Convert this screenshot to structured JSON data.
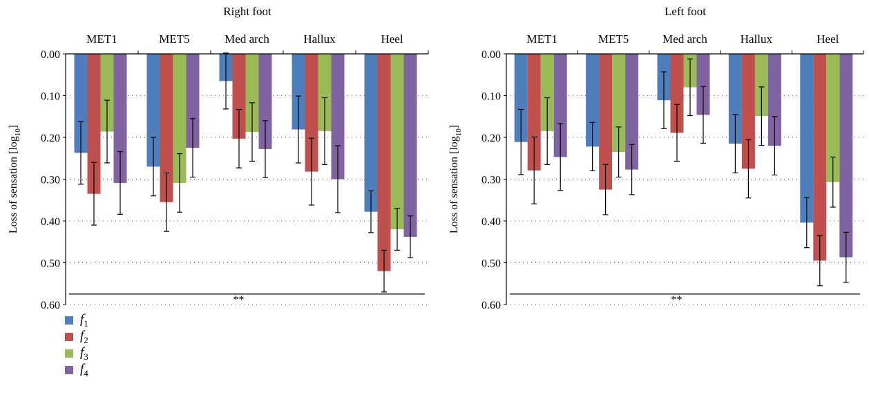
{
  "chart_data": [
    {
      "type": "bar",
      "title": "Right foot",
      "ylabel": "Loss of sensation [log10]",
      "ylabel_main": "Loss of sensation [log",
      "ylabel_sub": "10",
      "ylabel_close": "]",
      "ylim": [
        0,
        0.6
      ],
      "yaxis_inverted": true,
      "yticks": [
        "0.00",
        "0.10",
        "0.20",
        "0.30",
        "0.40",
        "0.50",
        "0.60"
      ],
      "grid": "horizontal-dotted",
      "categories": [
        "MET1",
        "MET5",
        "Med arch",
        "Hallux",
        "Heel"
      ],
      "series": [
        {
          "name": "f1",
          "values": [
            0.237,
            0.27,
            0.065,
            0.181,
            0.378
          ],
          "errors": [
            0.075,
            0.07,
            0.067,
            0.08,
            0.05
          ]
        },
        {
          "name": "f2",
          "values": [
            0.335,
            0.355,
            0.203,
            0.282,
            0.52
          ],
          "errors": [
            0.075,
            0.07,
            0.07,
            0.08,
            0.05
          ]
        },
        {
          "name": "f3",
          "values": [
            0.186,
            0.309,
            0.187,
            0.185,
            0.42
          ],
          "errors": [
            0.075,
            0.07,
            0.07,
            0.08,
            0.05
          ]
        },
        {
          "name": "f4",
          "values": [
            0.309,
            0.225,
            0.228,
            0.3,
            0.438
          ],
          "errors": [
            0.075,
            0.07,
            0.068,
            0.08,
            0.05
          ]
        }
      ],
      "significance": "**"
    },
    {
      "type": "bar",
      "title": "Left foot",
      "ylabel": "Loss of sensation [log10]",
      "ylabel_main": "Loss of sensation [log",
      "ylabel_sub": "10",
      "ylabel_close": "]",
      "ylim": [
        0,
        0.6
      ],
      "yaxis_inverted": true,
      "yticks": [
        "0.00",
        "0.10",
        "0.20",
        "0.30",
        "0.40",
        "0.50",
        "0.60"
      ],
      "grid": "horizontal-dotted",
      "categories": [
        "MET1",
        "MET5",
        "Med arch",
        "Hallux",
        "Heel"
      ],
      "series": [
        {
          "name": "f1",
          "values": [
            0.211,
            0.222,
            0.111,
            0.215,
            0.404
          ],
          "errors": [
            0.078,
            0.058,
            0.068,
            0.07,
            0.06
          ]
        },
        {
          "name": "f2",
          "values": [
            0.279,
            0.325,
            0.189,
            0.275,
            0.495
          ],
          "errors": [
            0.08,
            0.06,
            0.068,
            0.07,
            0.06
          ]
        },
        {
          "name": "f3",
          "values": [
            0.185,
            0.235,
            0.08,
            0.149,
            0.307
          ],
          "errors": [
            0.08,
            0.06,
            0.068,
            0.07,
            0.06
          ]
        },
        {
          "name": "f4",
          "values": [
            0.247,
            0.277,
            0.146,
            0.22,
            0.487
          ],
          "errors": [
            0.08,
            0.06,
            0.068,
            0.07,
            0.06
          ]
        }
      ],
      "significance": "**"
    }
  ],
  "legend": [
    {
      "base": "f",
      "sub": "1",
      "color": "#4f7ebd"
    },
    {
      "base": "f",
      "sub": "2",
      "color": "#c0504d"
    },
    {
      "base": "f",
      "sub": "3",
      "color": "#9bbb59"
    },
    {
      "base": "f",
      "sub": "4",
      "color": "#8064a2"
    }
  ],
  "colors": [
    "#4f7ebd",
    "#c0504d",
    "#9bbb59",
    "#8064a2"
  ]
}
